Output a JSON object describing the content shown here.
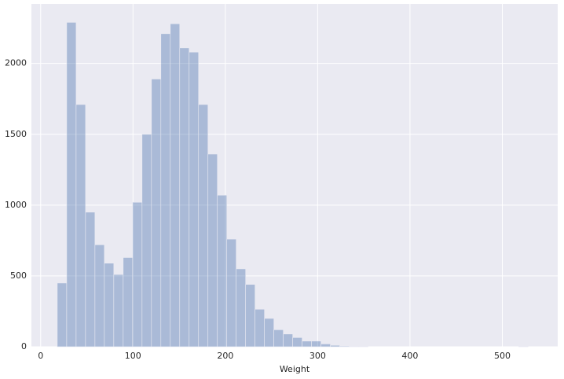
{
  "chart_data": {
    "type": "histogram",
    "x_label": "Weight",
    "color": "#4c72b0",
    "bins": [
      18,
      28.2,
      38.4,
      48.6,
      58.8,
      69,
      79.2,
      89.4,
      99.6,
      109.8,
      120,
      130.2,
      140.4,
      150.6,
      160.8,
      171,
      181.2,
      191.4,
      201.6,
      211.8,
      222,
      232.2,
      242.4,
      252.6,
      262.8,
      273,
      283.2,
      293.4,
      303.6,
      313.8,
      324,
      334.2,
      344.4,
      354.6,
      364.8,
      375,
      385.2,
      395.4,
      405.6,
      415.8,
      426,
      436.2,
      446.4,
      456.6,
      466.8,
      477,
      487.2,
      497.4,
      507.6,
      517.8,
      528
    ],
    "values": [
      450,
      2290,
      1710,
      950,
      720,
      590,
      510,
      630,
      1020,
      1500,
      1890,
      2210,
      2280,
      2110,
      2080,
      1710,
      1360,
      1070,
      760,
      550,
      440,
      265,
      200,
      120,
      90,
      65,
      40,
      40,
      20,
      10,
      5,
      3,
      1,
      0,
      0,
      0,
      0,
      0,
      0,
      0,
      0,
      0,
      0,
      0,
      0,
      0,
      0,
      0,
      0,
      1
    ],
    "xlim": [
      -10,
      560
    ],
    "xticks": [
      0,
      100,
      200,
      300,
      400,
      500
    ],
    "ylim": [
      0,
      2420
    ],
    "yticks": [
      0,
      500,
      1000,
      1500,
      2000
    ],
    "grid": true
  }
}
